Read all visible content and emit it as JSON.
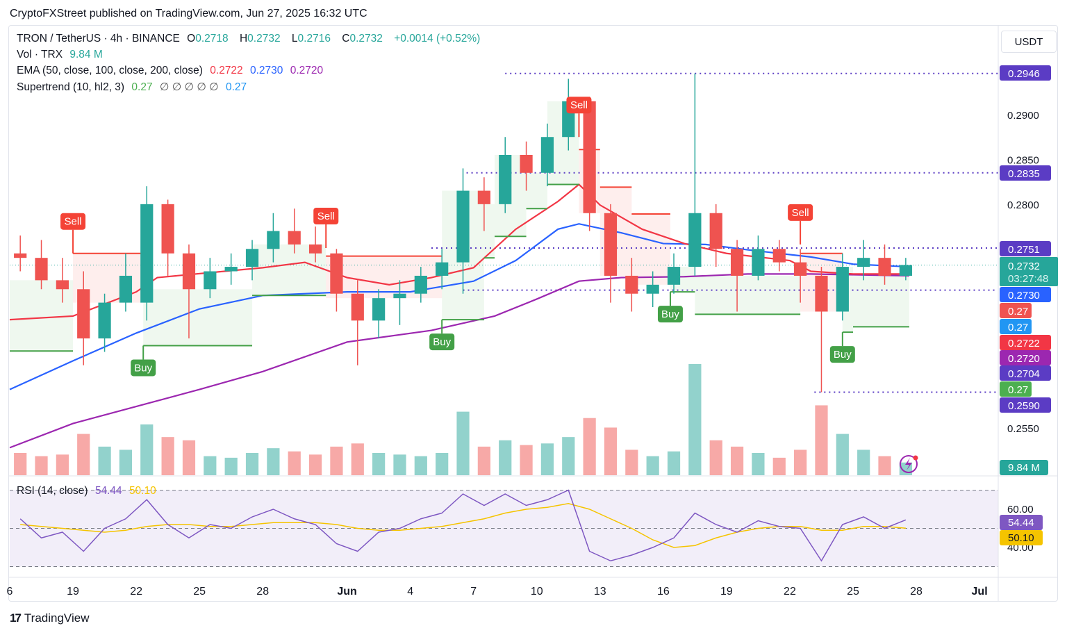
{
  "header": {
    "published": "CryptoFXStreet published on TradingView.com, Jun 27, 2025 16:32 UTC"
  },
  "legend": {
    "symbol": "TRON / TetherUS · 4h · BINANCE",
    "o_label": "O",
    "o": "0.2718",
    "h_label": "H",
    "h": "0.2732",
    "l_label": "L",
    "l": "0.2716",
    "c_label": "C",
    "c": "0.2732",
    "change": "+0.0014 (+0.52%)",
    "vol_label": "Vol · TRX",
    "vol": "9.84 M",
    "ema_label": "EMA (50, close, 100, close, 200, close)",
    "ema50": "0.2722",
    "ema100": "0.2730",
    "ema200": "0.2720",
    "st_label": "Supertrend (10, hl2, 3)",
    "st_up": "0.27",
    "st_empty": "∅ ∅ ∅ ∅ ∅",
    "st_down": "0.27",
    "rsi_label": "RSI (14, close)",
    "rsi": "54.44",
    "rsi_ma": "50.10"
  },
  "currency": "USDT",
  "footer": {
    "brand": "TradingView"
  },
  "colors": {
    "up": "#26a69a",
    "down": "#ef5350",
    "ema50": "#f23645",
    "ema100": "#2962ff",
    "ema200": "#9c27b0",
    "st_up": "#43a047",
    "st_down": "#f44336",
    "level": "#5b3cc4",
    "rsi": "#7e57c2",
    "rsi_ma": "#f5c400"
  },
  "chart_data": {
    "type": "candlestick",
    "ylim": [
      0.252,
      0.296
    ],
    "price_ticks": [
      "0.2900",
      "0.2850",
      "0.2800",
      "0.2550"
    ],
    "time_ticks": [
      {
        "label": "6",
        "date": "2025-05-16"
      },
      {
        "label": "19",
        "date": "2025-05-19"
      },
      {
        "label": "22",
        "date": "2025-05-22"
      },
      {
        "label": "25",
        "date": "2025-05-25"
      },
      {
        "label": "28",
        "date": "2025-05-28"
      },
      {
        "label": "Jun",
        "date": "2025-06-01"
      },
      {
        "label": "4",
        "date": "2025-06-04"
      },
      {
        "label": "7",
        "date": "2025-06-07"
      },
      {
        "label": "10",
        "date": "2025-06-10"
      },
      {
        "label": "13",
        "date": "2025-06-13"
      },
      {
        "label": "16",
        "date": "2025-06-16"
      },
      {
        "label": "19",
        "date": "2025-06-19"
      },
      {
        "label": "22",
        "date": "2025-06-22"
      },
      {
        "label": "25",
        "date": "2025-06-25"
      },
      {
        "label": "28",
        "date": "2025-06-28"
      },
      {
        "label": "Jul",
        "date": "2025-07-01"
      }
    ],
    "candles": [
      [
        "2025-05-16",
        0.2745,
        0.2765,
        0.2725,
        0.274,
        70
      ],
      [
        "2025-05-17",
        0.274,
        0.276,
        0.2705,
        0.2715,
        60
      ],
      [
        "2025-05-18",
        0.2715,
        0.274,
        0.269,
        0.2705,
        65
      ],
      [
        "2025-05-19",
        0.2705,
        0.2725,
        0.262,
        0.265,
        130
      ],
      [
        "2025-05-20",
        0.265,
        0.27,
        0.2635,
        0.269,
        90
      ],
      [
        "2025-05-21",
        0.269,
        0.2745,
        0.268,
        0.272,
        80
      ],
      [
        "2025-05-22",
        0.269,
        0.282,
        0.267,
        0.28,
        160
      ],
      [
        "2025-05-23",
        0.28,
        0.2805,
        0.272,
        0.2745,
        120
      ],
      [
        "2025-05-24",
        0.2745,
        0.2755,
        0.265,
        0.2705,
        110
      ],
      [
        "2025-05-25",
        0.2705,
        0.274,
        0.2695,
        0.2725,
        60
      ],
      [
        "2025-05-26",
        0.2725,
        0.2745,
        0.271,
        0.273,
        55
      ],
      [
        "2025-05-27",
        0.273,
        0.276,
        0.2715,
        0.275,
        70
      ],
      [
        "2025-05-28",
        0.275,
        0.279,
        0.2735,
        0.277,
        85
      ],
      [
        "2025-05-29",
        0.277,
        0.2795,
        0.2745,
        0.2755,
        75
      ],
      [
        "2025-05-30",
        0.2755,
        0.2775,
        0.2735,
        0.2745,
        65
      ],
      [
        "2025-05-31",
        0.2745,
        0.275,
        0.268,
        0.27,
        90
      ],
      [
        "2025-06-01",
        0.27,
        0.2715,
        0.262,
        0.267,
        100
      ],
      [
        "2025-06-02",
        0.267,
        0.2705,
        0.265,
        0.2695,
        70
      ],
      [
        "2025-06-03",
        0.2695,
        0.2715,
        0.2665,
        0.27,
        65
      ],
      [
        "2025-06-04",
        0.27,
        0.273,
        0.269,
        0.272,
        60
      ],
      [
        "2025-06-05",
        0.272,
        0.275,
        0.2705,
        0.2735,
        70
      ],
      [
        "2025-06-06",
        0.2735,
        0.284,
        0.27,
        0.2815,
        200
      ],
      [
        "2025-06-07",
        0.2815,
        0.283,
        0.277,
        0.28,
        90
      ],
      [
        "2025-06-08",
        0.28,
        0.2875,
        0.279,
        0.2855,
        110
      ],
      [
        "2025-06-09",
        0.2855,
        0.287,
        0.2815,
        0.2835,
        95
      ],
      [
        "2025-06-10",
        0.2835,
        0.289,
        0.282,
        0.2875,
        100
      ],
      [
        "2025-06-11",
        0.2875,
        0.294,
        0.286,
        0.2915,
        120
      ],
      [
        "2025-06-12",
        0.2915,
        0.292,
        0.277,
        0.279,
        180
      ],
      [
        "2025-06-13",
        0.279,
        0.28,
        0.269,
        0.272,
        150
      ],
      [
        "2025-06-14",
        0.272,
        0.274,
        0.268,
        0.27,
        80
      ],
      [
        "2025-06-15",
        0.27,
        0.2725,
        0.2685,
        0.271,
        60
      ],
      [
        "2025-06-16",
        0.271,
        0.2745,
        0.27,
        0.273,
        75
      ],
      [
        "2025-06-17",
        0.273,
        0.2946,
        0.272,
        0.279,
        350
      ],
      [
        "2025-06-18",
        0.279,
        0.28,
        0.273,
        0.275,
        110
      ],
      [
        "2025-06-19",
        0.275,
        0.276,
        0.268,
        0.272,
        90
      ],
      [
        "2025-06-20",
        0.272,
        0.2765,
        0.2715,
        0.275,
        70
      ],
      [
        "2025-06-21",
        0.275,
        0.276,
        0.2725,
        0.2735,
        55
      ],
      [
        "2025-06-22",
        0.2735,
        0.275,
        0.269,
        0.272,
        80
      ],
      [
        "2025-06-23",
        0.272,
        0.273,
        0.259,
        0.268,
        220
      ],
      [
        "2025-06-24",
        0.268,
        0.2745,
        0.267,
        0.273,
        130
      ],
      [
        "2025-06-25",
        0.273,
        0.276,
        0.2715,
        0.274,
        80
      ],
      [
        "2025-06-26",
        0.274,
        0.2755,
        0.271,
        0.272,
        60
      ],
      [
        "2025-06-27",
        0.272,
        0.274,
        0.2715,
        0.2732,
        40
      ]
    ],
    "candle_fields": [
      "date",
      "open",
      "high",
      "low",
      "close",
      "volume_M"
    ],
    "ema50": [
      [
        "2025-05-16",
        0.2671
      ],
      [
        "2025-05-19",
        0.2675
      ],
      [
        "2025-05-22",
        0.2702
      ],
      [
        "2025-05-23",
        0.2718
      ],
      [
        "2025-05-28",
        0.2729
      ],
      [
        "2025-05-30",
        0.2735
      ],
      [
        "2025-06-01",
        0.2718
      ],
      [
        "2025-06-03",
        0.271
      ],
      [
        "2025-06-05",
        0.2718
      ],
      [
        "2025-06-07",
        0.2729
      ],
      [
        "2025-06-09",
        0.2772
      ],
      [
        "2025-06-11",
        0.2803
      ],
      [
        "2025-06-12",
        0.2822
      ],
      [
        "2025-06-13",
        0.2799
      ],
      [
        "2025-06-15",
        0.2772
      ],
      [
        "2025-06-17",
        0.2756
      ],
      [
        "2025-06-19",
        0.2745
      ],
      [
        "2025-06-22",
        0.2737
      ],
      [
        "2025-06-23",
        0.2725
      ],
      [
        "2025-06-25",
        0.2722
      ],
      [
        "2025-06-27T16",
        0.2722
      ]
    ],
    "ema100": [
      [
        "2025-05-16",
        0.2593
      ],
      [
        "2025-05-19",
        0.2625
      ],
      [
        "2025-05-22",
        0.2656
      ],
      [
        "2025-05-25",
        0.2683
      ],
      [
        "2025-05-28",
        0.2698
      ],
      [
        "2025-06-01",
        0.2702
      ],
      [
        "2025-06-04",
        0.2702
      ],
      [
        "2025-06-07",
        0.2714
      ],
      [
        "2025-06-09",
        0.2737
      ],
      [
        "2025-06-11",
        0.2772
      ],
      [
        "2025-06-12",
        0.2778
      ],
      [
        "2025-06-14",
        0.2768
      ],
      [
        "2025-06-16",
        0.2756
      ],
      [
        "2025-06-18",
        0.2755
      ],
      [
        "2025-06-20",
        0.2749
      ],
      [
        "2025-06-23",
        0.2741
      ],
      [
        "2025-06-25",
        0.2733
      ],
      [
        "2025-06-27T16",
        0.273
      ]
    ],
    "ema200": [
      [
        "2025-05-16",
        0.2528
      ],
      [
        "2025-05-19",
        0.2555
      ],
      [
        "2025-05-22",
        0.2574
      ],
      [
        "2025-05-25",
        0.2593
      ],
      [
        "2025-05-28",
        0.2613
      ],
      [
        "2025-06-01",
        0.2646
      ],
      [
        "2025-06-05",
        0.2659
      ],
      [
        "2025-06-08",
        0.2675
      ],
      [
        "2025-06-10",
        0.2694
      ],
      [
        "2025-06-12",
        0.2714
      ],
      [
        "2025-06-14",
        0.2718
      ],
      [
        "2025-06-17",
        0.2719
      ],
      [
        "2025-06-20",
        0.2722
      ],
      [
        "2025-06-23",
        0.2722
      ],
      [
        "2025-06-27T16",
        0.272
      ]
    ],
    "supertrend": [
      {
        "start": "2025-05-16",
        "end": "2025-05-19",
        "value": 0.2636,
        "trend": "up"
      },
      {
        "start": "2025-05-19",
        "end": "2025-05-22T08",
        "value": 0.2745,
        "trend": "down"
      },
      {
        "start": "2025-05-22T08",
        "end": "2025-05-27T12",
        "value": 0.2642,
        "trend": "up"
      },
      {
        "start": "2025-05-27T12",
        "end": "2025-05-31",
        "value": 0.2698,
        "trend": "up"
      },
      {
        "start": "2025-05-31",
        "end": "2025-06-05T12",
        "value": 0.2742,
        "trend": "down"
      },
      {
        "start": "2025-06-05T12",
        "end": "2025-06-07T12",
        "value": 0.2671,
        "trend": "up"
      },
      {
        "start": "2025-06-07T12",
        "end": "2025-06-08",
        "value": 0.274,
        "trend": "up"
      },
      {
        "start": "2025-06-08",
        "end": "2025-06-09T12",
        "value": 0.2764,
        "trend": "up"
      },
      {
        "start": "2025-06-09T12",
        "end": "2025-06-10T12",
        "value": 0.2795,
        "trend": "up"
      },
      {
        "start": "2025-06-10T12",
        "end": "2025-06-12",
        "value": 0.2822,
        "trend": "up"
      },
      {
        "start": "2025-06-12",
        "end": "2025-06-13",
        "value": 0.2861,
        "trend": "down"
      },
      {
        "start": "2025-06-13",
        "end": "2025-06-14T12",
        "value": 0.2819,
        "trend": "down"
      },
      {
        "start": "2025-06-14T12",
        "end": "2025-06-16T08",
        "value": 0.2789,
        "trend": "down"
      },
      {
        "start": "2025-06-16T08",
        "end": "2025-06-17T12",
        "value": 0.2702,
        "trend": "up"
      },
      {
        "start": "2025-06-17T12",
        "end": "2025-06-22T12",
        "value": 0.2677,
        "trend": "up"
      },
      {
        "start": "2025-06-22T12",
        "end": "2025-06-24T12",
        "value": 0.2745,
        "trend": "down"
      },
      {
        "start": "2025-06-24T12",
        "end": "2025-06-25",
        "value": 0.2657,
        "trend": "up"
      },
      {
        "start": "2025-06-25",
        "end": "2025-06-27T16",
        "value": 0.2663,
        "trend": "up"
      }
    ],
    "signals": [
      {
        "label": "Sell",
        "date": "2025-05-19",
        "price": 0.2745
      },
      {
        "label": "Buy",
        "date": "2025-05-22T08",
        "price": 0.2642
      },
      {
        "label": "Sell",
        "date": "2025-05-31",
        "price": 0.2751
      },
      {
        "label": "Buy",
        "date": "2025-06-05T12",
        "price": 0.2671
      },
      {
        "label": "Sell",
        "date": "2025-06-12",
        "price": 0.2875
      },
      {
        "label": "Buy",
        "date": "2025-06-16T08",
        "price": 0.2702
      },
      {
        "label": "Sell",
        "date": "2025-06-22T12",
        "price": 0.2755
      },
      {
        "label": "Buy",
        "date": "2025-06-24T12",
        "price": 0.2657
      }
    ],
    "levels": [
      {
        "label": "0.2946",
        "value": 0.2946,
        "from": "2025-06-08T12"
      },
      {
        "label": "0.2835",
        "value": 0.2835,
        "from": "2025-06-06T16"
      },
      {
        "label": "0.2751",
        "value": 0.2751,
        "from": "2025-06-05"
      },
      {
        "label": "0.2704",
        "value": 0.2704,
        "from": "2025-06-06T12"
      },
      {
        "label": "0.2590",
        "value": 0.259,
        "from": "2025-06-23T04"
      }
    ],
    "price_tags": [
      {
        "label": "0.2751",
        "value": 0.2751,
        "color": "#5b3cc4"
      },
      {
        "label": "0.2730",
        "value": 0.2727,
        "color": "#2962ff"
      },
      {
        "label": "0.27",
        "value": 0.271,
        "color": "#ef5350"
      },
      {
        "label": "0.27",
        "value": 0.2692,
        "color": "#2196f3"
      },
      {
        "label": "0.2722",
        "value": 0.2674,
        "color": "#f23645"
      },
      {
        "label": "0.2720",
        "value": 0.2656,
        "color": "#9c27b0"
      },
      {
        "label": "0.2704",
        "value": 0.2638,
        "color": "#5b3cc4"
      },
      {
        "label": "0.27",
        "value": 0.2621,
        "color": "#4caf50"
      },
      {
        "label": "0.2590",
        "value": 0.2603,
        "color": "#5b3cc4"
      },
      {
        "label": "0.2946",
        "value": 0.2946,
        "color": "#5b3cc4"
      },
      {
        "label": "0.2835",
        "value": 0.2835,
        "color": "#5b3cc4"
      }
    ],
    "last_price": {
      "label": "0.2732",
      "value": 0.2732,
      "countdown": "03:27:48"
    },
    "volume_tag": "9.84 M",
    "rsi": {
      "ylim": [
        25,
        75
      ],
      "ticks": [
        "60.00",
        "40.00"
      ],
      "bands": [
        70,
        50,
        30
      ],
      "values": [
        55,
        45,
        48,
        38,
        50,
        55,
        65,
        52,
        45,
        52,
        50,
        56,
        60,
        55,
        52,
        42,
        38,
        48,
        50,
        55,
        58,
        68,
        62,
        68,
        62,
        65,
        70,
        38,
        33,
        36,
        40,
        45,
        58,
        52,
        48,
        54,
        51,
        50,
        33,
        52,
        56,
        50,
        54.44
      ],
      "ma": [
        52,
        51,
        50,
        49,
        48,
        49,
        51,
        52,
        52,
        51,
        51,
        52,
        53,
        53,
        53,
        52,
        50,
        49,
        49,
        50,
        51,
        53,
        55,
        58,
        60,
        61,
        63,
        60,
        55,
        50,
        44,
        40,
        41,
        45,
        48,
        50,
        51,
        51,
        49,
        49,
        51,
        51,
        50.1
      ]
    }
  }
}
